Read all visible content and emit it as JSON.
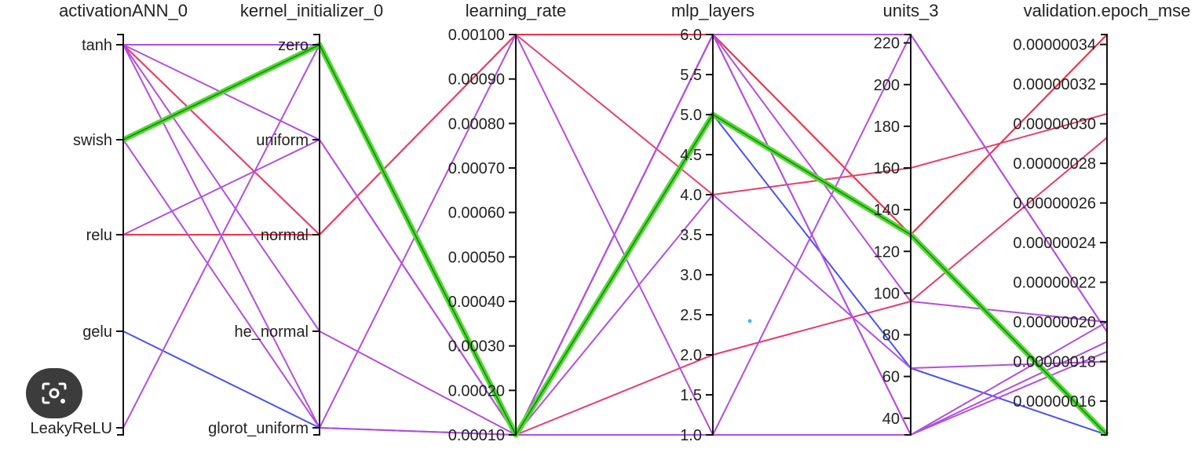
{
  "chart_data": {
    "type": "parallel_coordinates",
    "axes": [
      {
        "name": "activationANN_0",
        "kind": "categorical",
        "ticks": [
          "tanh",
          "swish",
          "relu",
          "gelu",
          "LeakyReLU"
        ]
      },
      {
        "name": "kernel_initializer_0",
        "kind": "categorical",
        "ticks": [
          "zero",
          "uniform",
          "normal",
          "he_normal",
          "glorot_uniform"
        ]
      },
      {
        "name": "learning_rate",
        "kind": "numeric",
        "range": [
          0.0001,
          0.001
        ],
        "ticks": [
          "0.00100",
          "0.00090",
          "0.00080",
          "0.00070",
          "0.00060",
          "0.00050",
          "0.00040",
          "0.00030",
          "0.00020",
          "0.00010"
        ]
      },
      {
        "name": "mlp_layers",
        "kind": "numeric",
        "range": [
          1.0,
          6.0
        ],
        "ticks": [
          "6.0",
          "5.5",
          "5.0",
          "4.5",
          "4.0",
          "3.5",
          "3.0",
          "2.5",
          "2.0",
          "1.5",
          "1.0"
        ]
      },
      {
        "name": "units_3",
        "kind": "numeric",
        "range": [
          32,
          224
        ],
        "ticks": [
          "220",
          "200",
          "180",
          "160",
          "140",
          "120",
          "100",
          "80",
          "60",
          "40"
        ]
      },
      {
        "name": "validation.epoch_mse",
        "kind": "numeric",
        "range": [
          1.43e-07,
          3.45e-07
        ],
        "ticks": [
          "0.00000034",
          "0.00000032",
          "0.00000030",
          "0.00000028",
          "0.00000026",
          "0.00000024",
          "0.00000022",
          "0.00000020",
          "0.00000018",
          "0.00000016"
        ]
      }
    ],
    "lines": [
      {
        "values": [
          "swish",
          "zero",
          0.0001,
          5.0,
          128,
          1.43e-07
        ],
        "color": "#4dde2d",
        "highlight": true
      },
      {
        "values": [
          "tanh",
          "normal",
          0.001,
          6.0,
          128,
          3.45e-07
        ],
        "color": "#f0344a"
      },
      {
        "values": [
          "relu",
          "normal",
          0.001,
          6.0,
          128,
          3.45e-07
        ],
        "color": "#f0344a"
      },
      {
        "values": [
          "tanh",
          "zero",
          0.0001,
          2.0,
          96,
          2.93e-07
        ],
        "color": "#e83b6e"
      },
      {
        "values": [
          "tanh",
          "normal",
          0.001,
          4.0,
          160,
          3.05e-07
        ],
        "color": "#e8406a"
      },
      {
        "values": [
          "gelu",
          "glorot_uniform",
          0.0001,
          5.0,
          64,
          1.43e-07
        ],
        "color": "#4a52f5"
      },
      {
        "values": [
          "relu",
          "uniform",
          0.0001,
          1.0,
          224,
          1.95e-07
        ],
        "color": "#b14fe0"
      },
      {
        "values": [
          "tanh",
          "glorot_uniform",
          0.0001,
          6.0,
          32,
          1.85e-07
        ],
        "color": "#b14fe0"
      },
      {
        "values": [
          "tanh",
          "he_normal",
          0.0001,
          6.0,
          96,
          2e-07
        ],
        "color": "#b14fe0"
      },
      {
        "values": [
          "LeakyReLU",
          "zero",
          0.0001,
          4.0,
          64,
          1.8e-07
        ],
        "color": "#b14fe0"
      },
      {
        "values": [
          "tanh",
          "uniform",
          0.0001,
          6.0,
          32,
          1.9e-07
        ],
        "color": "#b14fe0"
      },
      {
        "values": [
          "swish",
          "glorot_uniform",
          0.001,
          1.0,
          32,
          2e-07
        ],
        "color": "#b14fe0"
      },
      {
        "values": [
          "tanh",
          "zero",
          0.0001,
          6.0,
          224,
          1.95e-07
        ],
        "color": "#b14fe0"
      }
    ],
    "grid": false,
    "legend": "none"
  }
}
